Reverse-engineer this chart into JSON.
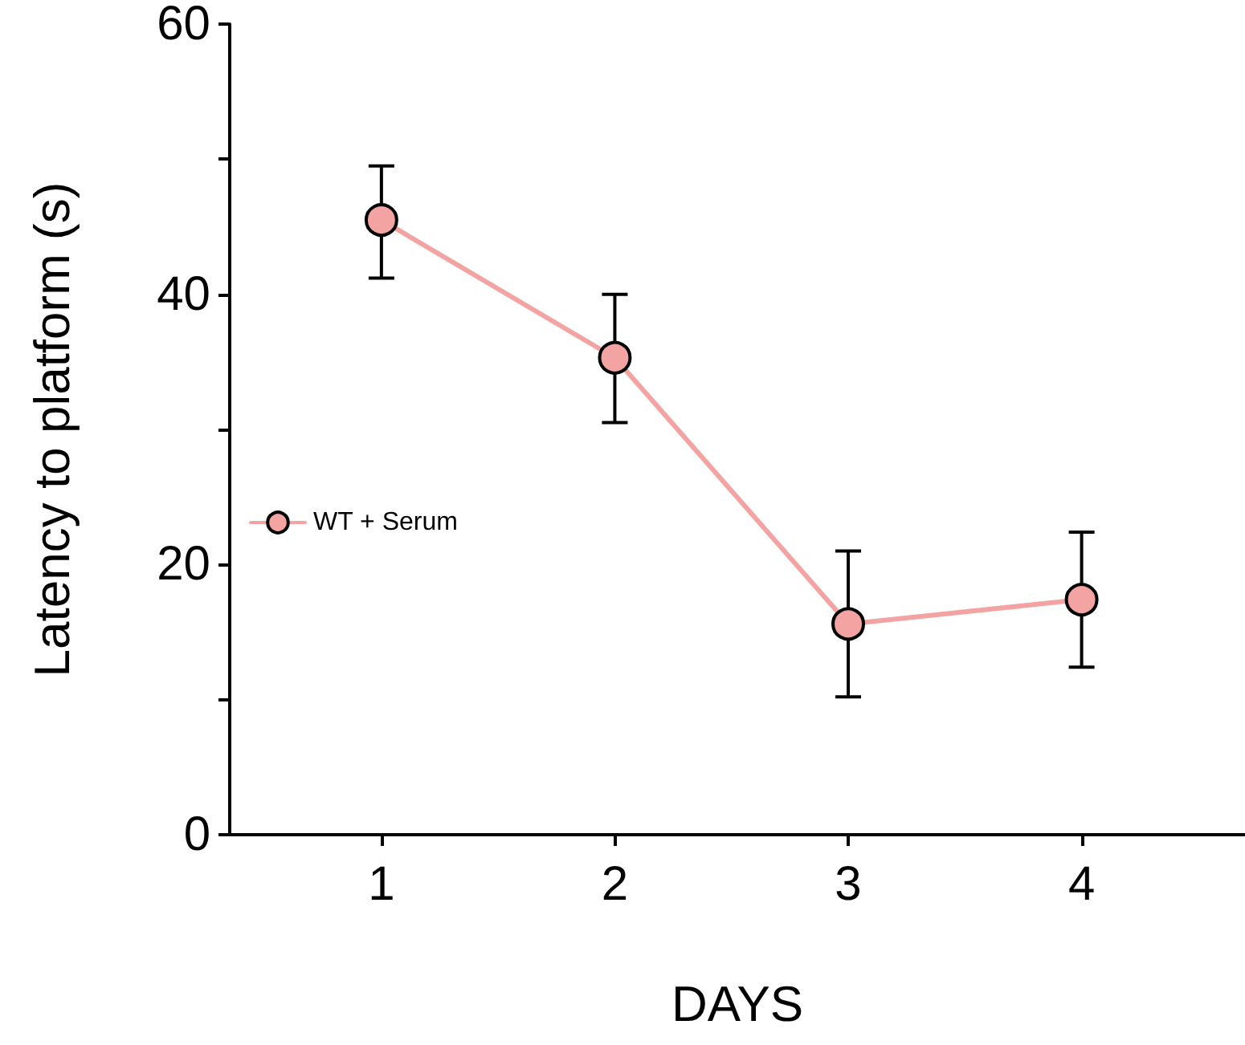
{
  "chart_data": {
    "type": "line",
    "xlabel": "DAYS",
    "ylabel": "Latency to platform (s)",
    "x": [
      1,
      2,
      3,
      4
    ],
    "series": [
      {
        "name": "WT + Serum",
        "color": "#f4a3a3",
        "values": [
          45.5,
          35.3,
          15.6,
          17.4
        ],
        "errors": [
          [
            41.2,
            49.5
          ],
          [
            30.5,
            40
          ],
          [
            10.2,
            21
          ],
          [
            12.4,
            22.4
          ]
        ]
      }
    ],
    "xlim": [
      0.35,
      4.7
    ],
    "xticks": [
      1,
      2,
      3,
      4
    ],
    "ylim": [
      0,
      60
    ],
    "yticks": [
      0,
      {
        "value": 10,
        "label": null
      },
      20,
      {
        "value": 30,
        "label": null
      },
      40,
      {
        "value": 50,
        "label": null
      },
      60
    ],
    "grid": false,
    "legend": "left",
    "marker": "circle",
    "line_style": "solid"
  }
}
